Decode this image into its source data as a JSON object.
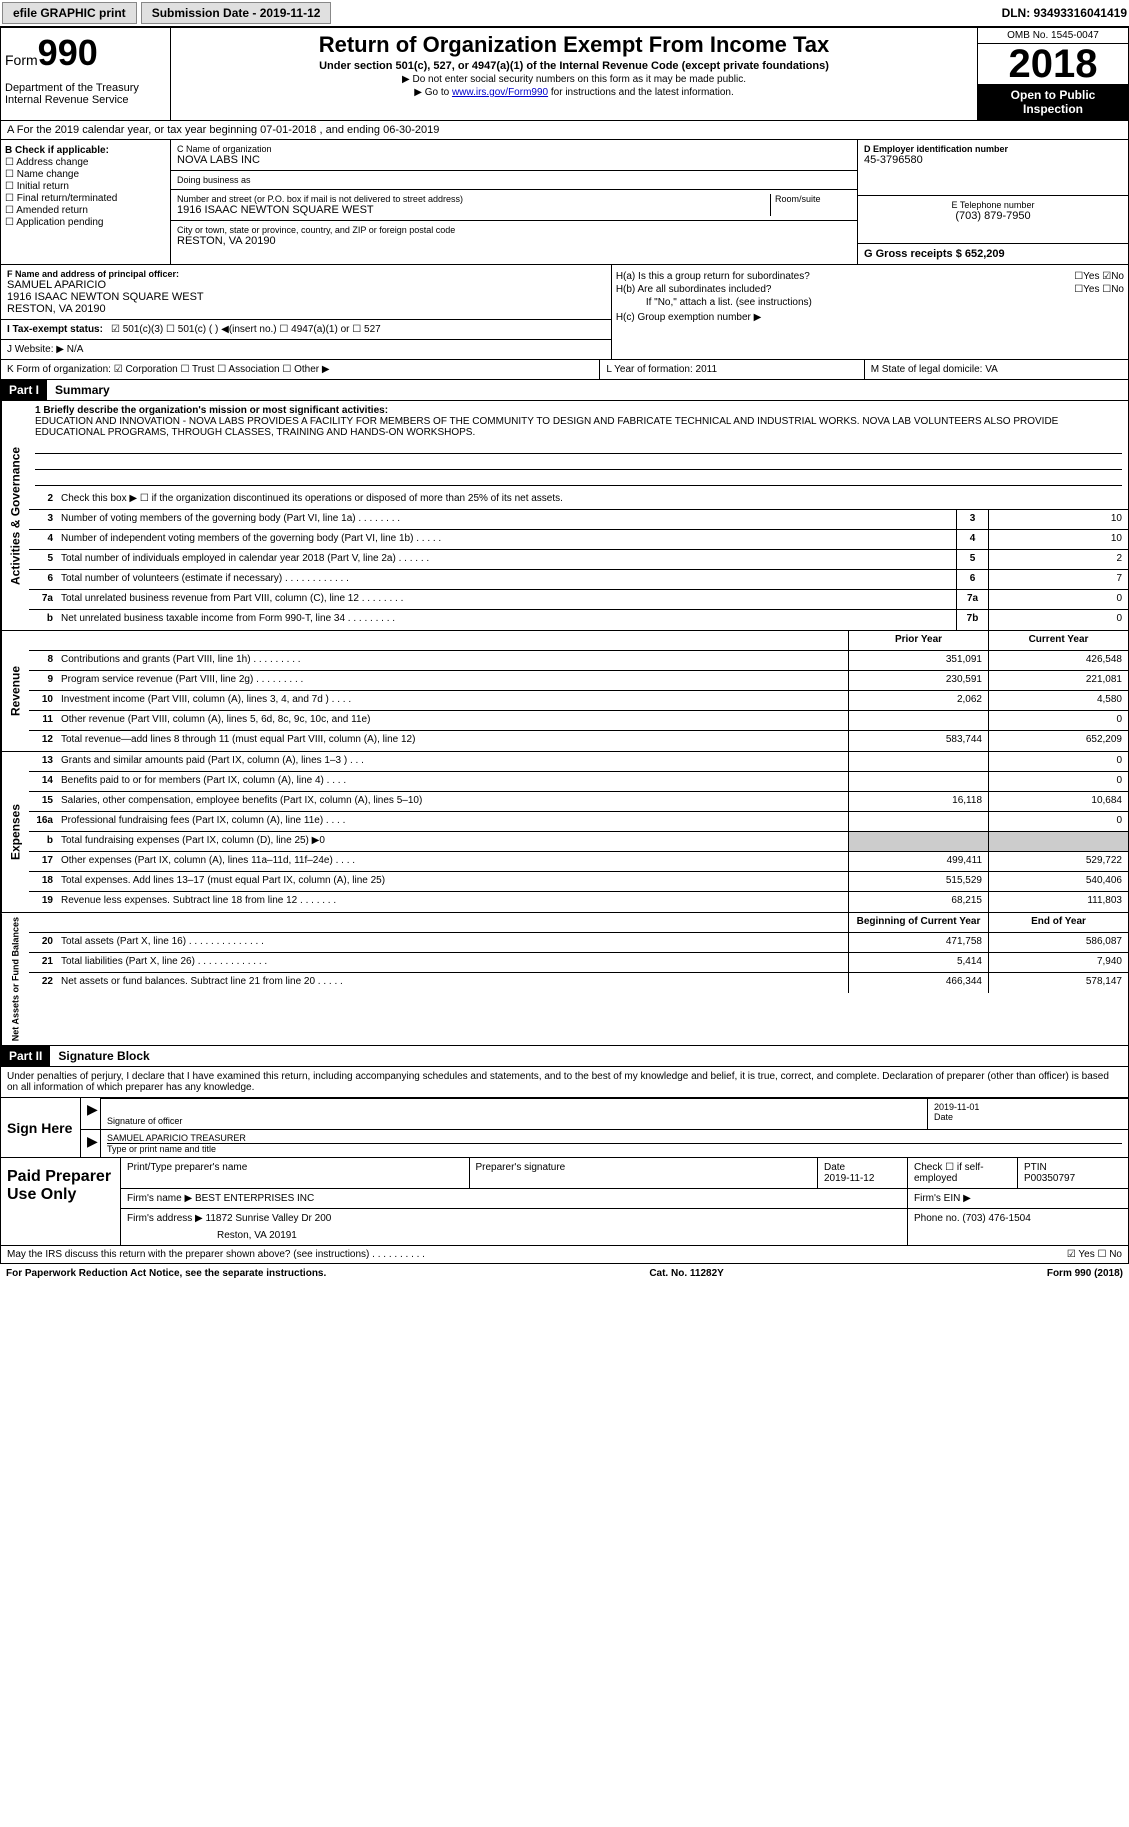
{
  "topbar": {
    "efile_btn": "efile GRAPHIC print",
    "sub_label": "Submission Date - 2019-11-12",
    "dln": "DLN: 93493316041419"
  },
  "header": {
    "form_word": "Form",
    "form_num": "990",
    "dept": "Department of the Treasury\nInternal Revenue Service",
    "title": "Return of Organization Exempt From Income Tax",
    "subtitle": "Under section 501(c), 527, or 4947(a)(1) of the Internal Revenue Code (except private foundations)",
    "subtext1": "▶ Do not enter social security numbers on this form as it may be made public.",
    "subtext2a": "▶ Go to ",
    "subtext2_link": "www.irs.gov/Form990",
    "subtext2b": " for instructions and the latest information.",
    "omb": "OMB No. 1545-0047",
    "year": "2018",
    "open_pub": "Open to Public Inspection"
  },
  "rowA": "A For the 2019 calendar year, or tax year beginning 07-01-2018   , and ending 06-30-2019",
  "colB": {
    "hdr": "B Check if applicable:",
    "items": [
      "☐ Address change",
      "☐ Name change",
      "☐ Initial return",
      "☐ Final return/terminated",
      "☐ Amended return",
      "☐ Application pending"
    ]
  },
  "colC": {
    "name_lbl": "C Name of organization",
    "name": "NOVA LABS INC",
    "dba_lbl": "Doing business as",
    "dba": "",
    "addr_lbl": "Number and street (or P.O. box if mail is not delivered to street address)",
    "room_lbl": "Room/suite",
    "addr": "1916 ISAAC NEWTON SQUARE WEST",
    "city_lbl": "City or town, state or province, country, and ZIP or foreign postal code",
    "city": "RESTON, VA  20190"
  },
  "colD": {
    "ein_lbl": "D Employer identification number",
    "ein": "45-3796580",
    "tel_lbl": "E Telephone number",
    "tel": "(703) 879-7950",
    "gross_lbl": "G Gross receipts $ 652,209"
  },
  "secF": {
    "lbl": "F  Name and address of principal officer:",
    "name": "SAMUEL APARICIO",
    "addr1": "1916 ISAAC NEWTON SQUARE WEST",
    "addr2": "RESTON, VA  20190"
  },
  "secH": {
    "ha": "H(a)  Is this a group return for subordinates?",
    "ha_ans": "☐Yes ☑No",
    "hb": "H(b)  Are all subordinates included?",
    "hb_ans": "☐Yes ☐No",
    "hb_note": "If \"No,\" attach a list. (see instructions)",
    "hc": "H(c)  Group exemption number ▶"
  },
  "secI": {
    "lbl": "I   Tax-exempt status:",
    "opts": "☑ 501(c)(3)   ☐ 501(c) (  ) ◀(insert no.)   ☐ 4947(a)(1) or  ☐ 527"
  },
  "secJ": "J   Website: ▶  N/A",
  "rowK": {
    "k1": "K Form of organization:  ☑ Corporation ☐ Trust ☐ Association ☐ Other ▶",
    "k2": "L Year of formation: 2011",
    "k3": "M State of legal domicile: VA"
  },
  "part1": {
    "hdr": "Part I",
    "title": "Summary"
  },
  "mission": {
    "lbl": "1  Briefly describe the organization's mission or most significant activities:",
    "text": "EDUCATION AND INNOVATION - NOVA LABS PROVIDES A FACILITY FOR MEMBERS OF THE COMMUNITY TO DESIGN AND FABRICATE TECHNICAL AND INDUSTRIAL WORKS. NOVA LAB VOLUNTEERS ALSO PROVIDE EDUCATIONAL PROGRAMS, THROUGH CLASSES, TRAINING AND HANDS-ON WORKSHOPS."
  },
  "gov_side": "Activities & Governance",
  "gov_rows": [
    {
      "n": "2",
      "d": "Check this box ▶ ☐  if the organization discontinued its operations or disposed of more than 25% of its net assets."
    },
    {
      "n": "3",
      "d": "Number of voting members of the governing body (Part VI, line 1a)   .    .    .    .    .    .    .    .",
      "b": "3",
      "v": "10"
    },
    {
      "n": "4",
      "d": "Number of independent voting members of the governing body (Part VI, line 1b)   .    .    .    .    .",
      "b": "4",
      "v": "10"
    },
    {
      "n": "5",
      "d": "Total number of individuals employed in calendar year 2018 (Part V, line 2a)   .    .    .    .    .    .",
      "b": "5",
      "v": "2"
    },
    {
      "n": "6",
      "d": "Total number of volunteers (estimate if necessary)   .    .    .    .    .    .    .    .    .    .    .    .",
      "b": "6",
      "v": "7"
    },
    {
      "n": "7a",
      "d": "Total unrelated business revenue from Part VIII, column (C), line 12   .    .    .    .    .    .    .    .",
      "b": "7a",
      "v": "0"
    },
    {
      "n": "b",
      "d": "Net unrelated business taxable income from Form 990-T, line 34   .    .    .    .    .    .    .    .    .",
      "b": "7b",
      "v": "0"
    }
  ],
  "rev_side": "Revenue",
  "rev_hdr": {
    "py": "Prior Year",
    "cy": "Current Year"
  },
  "rev_rows": [
    {
      "n": "8",
      "d": "Contributions and grants (Part VIII, line 1h)   .    .    .    .    .    .    .    .    .",
      "py": "351,091",
      "cy": "426,548"
    },
    {
      "n": "9",
      "d": "Program service revenue (Part VIII, line 2g)   .    .    .    .    .    .    .    .    .",
      "py": "230,591",
      "cy": "221,081"
    },
    {
      "n": "10",
      "d": "Investment income (Part VIII, column (A), lines 3, 4, and 7d )   .    .    .    .",
      "py": "2,062",
      "cy": "4,580"
    },
    {
      "n": "11",
      "d": "Other revenue (Part VIII, column (A), lines 5, 6d, 8c, 9c, 10c, and 11e)",
      "py": "",
      "cy": "0"
    },
    {
      "n": "12",
      "d": "Total revenue—add lines 8 through 11 (must equal Part VIII, column (A), line 12)",
      "py": "583,744",
      "cy": "652,209"
    }
  ],
  "exp_side": "Expenses",
  "exp_rows": [
    {
      "n": "13",
      "d": "Grants and similar amounts paid (Part IX, column (A), lines 1–3 )  .    .    .",
      "py": "",
      "cy": "0"
    },
    {
      "n": "14",
      "d": "Benefits paid to or for members (Part IX, column (A), line 4)   .    .    .    .",
      "py": "",
      "cy": "0"
    },
    {
      "n": "15",
      "d": "Salaries, other compensation, employee benefits (Part IX, column (A), lines 5–10)",
      "py": "16,118",
      "cy": "10,684"
    },
    {
      "n": "16a",
      "d": "Professional fundraising fees (Part IX, column (A), line 11e)   .    .    .    .",
      "py": "",
      "cy": "0"
    },
    {
      "n": "b",
      "d": "Total fundraising expenses (Part IX, column (D), line 25) ▶0",
      "py": "shaded",
      "cy": "shaded"
    },
    {
      "n": "17",
      "d": "Other expenses (Part IX, column (A), lines 11a–11d, 11f–24e)   .    .    .    .",
      "py": "499,411",
      "cy": "529,722"
    },
    {
      "n": "18",
      "d": "Total expenses. Add lines 13–17 (must equal Part IX, column (A), line 25)",
      "py": "515,529",
      "cy": "540,406"
    },
    {
      "n": "19",
      "d": "Revenue less expenses. Subtract line 18 from line 12   .    .    .    .    .    .    .",
      "py": "68,215",
      "cy": "111,803"
    }
  ],
  "na_side": "Net Assets or Fund Balances",
  "na_hdr": {
    "py": "Beginning of Current Year",
    "cy": "End of Year"
  },
  "na_rows": [
    {
      "n": "20",
      "d": "Total assets (Part X, line 16)   .    .    .    .    .    .    .    .    .    .    .    .    .    .",
      "py": "471,758",
      "cy": "586,087"
    },
    {
      "n": "21",
      "d": "Total liabilities (Part X, line 26)   .    .    .    .    .    .    .    .    .    .    .    .    .",
      "py": "5,414",
      "cy": "7,940"
    },
    {
      "n": "22",
      "d": "Net assets or fund balances. Subtract line 21 from line 20   .    .    .    .    .",
      "py": "466,344",
      "cy": "578,147"
    }
  ],
  "part2": {
    "hdr": "Part II",
    "title": "Signature Block"
  },
  "sig_text": "Under penalties of perjury, I declare that I have examined this return, including accompanying schedules and statements, and to the best of my knowledge and belief, it is true, correct, and complete. Declaration of preparer (other than officer) is based on all information of which preparer has any knowledge.",
  "sign": {
    "left": "Sign Here",
    "sig_lbl": "Signature of officer",
    "date_lbl": "Date",
    "date_val": "2019-11-01",
    "name": "SAMUEL APARICIO TREASURER",
    "name_lbl": "Type or print name and title"
  },
  "prep": {
    "left": "Paid Preparer Use Only",
    "r1": {
      "c1_lbl": "Print/Type preparer's name",
      "c2_lbl": "Preparer's signature",
      "c3_lbl": "Date",
      "c3_val": "2019-11-12",
      "c4_lbl": "Check ☐ if self-employed",
      "c5_lbl": "PTIN",
      "c5_val": "P00350797"
    },
    "r2": {
      "c1_lbl": "Firm's name    ▶",
      "c1_val": "BEST ENTERPRISES INC",
      "c2_lbl": "Firm's EIN ▶"
    },
    "r3": {
      "c1_lbl": "Firm's address ▶",
      "c1_val": "11872 Sunrise Valley Dr 200",
      "c1_val2": "Reston, VA  20191",
      "c2_lbl": "Phone no. (703) 476-1504"
    }
  },
  "bottom": {
    "q": "May the IRS discuss this return with the preparer shown above? (see instructions)   .    .    .    .    .    .    .    .    .    .",
    "a": "☑ Yes  ☐ No"
  },
  "footer": {
    "left": "For Paperwork Reduction Act Notice, see the separate instructions.",
    "mid": "Cat. No. 11282Y",
    "right": "Form 990 (2018)"
  }
}
